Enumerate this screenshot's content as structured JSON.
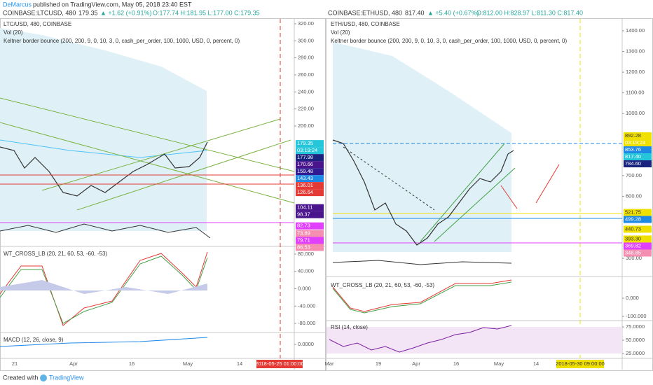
{
  "header": {
    "author": "DeMarcus",
    "published": "published on TradingView.com, May 05, 2018 23:40 EST"
  },
  "left": {
    "symbol": "COINBASE:LTCUSD, 480",
    "last": "179.35",
    "change": "▲ +1.62 (+0.91%)",
    "ohlc": "O:177.74 H:181.95 L:177.00 C:179.35",
    "pane_title": "LTC/USD, 480, COINBASE",
    "volume": "Vol (20)",
    "strategy": "Keltner border bounce (200, 200, 9, 0, 10, 3, 0, cash_per_order, 100, 1000, USD, 0, percent, 0)",
    "price_ticks": [
      {
        "value": 320,
        "label": "320.00"
      },
      {
        "value": 300,
        "label": "300.00"
      },
      {
        "value": 280,
        "label": "280.00"
      },
      {
        "value": 260,
        "label": "260.00"
      },
      {
        "value": 240,
        "label": "240.00"
      },
      {
        "value": 220,
        "label": "220.00"
      },
      {
        "value": 200,
        "label": "200.00"
      }
    ],
    "price_tags": [
      179.35,
      177.98,
      170.66,
      159.48,
      143.43,
      136.01,
      126.64,
      104.11,
      98.37,
      82.73,
      73.89,
      79.71,
      86.53
    ],
    "price_tag_colors": [
      "#26c6da",
      "#1a237e",
      "#4a148c",
      "#311b92",
      "#1e88e5",
      "#e53935",
      "#e53935",
      "#4a148c",
      "#4a148c",
      "#e040fb",
      "#f48fb1",
      "#e040fb",
      "#f48fb1"
    ],
    "countdown": "03:19:24",
    "wt_title": "WT_CROSS_LB (20, 21, 60, 53, -60, -53)",
    "wt_ticks": [
      {
        "value": 80,
        "label": "80.000"
      },
      {
        "value": 40,
        "label": "40.000"
      },
      {
        "value": 0,
        "label": "0.000"
      },
      {
        "value": -40,
        "label": "-40.000"
      },
      {
        "value": -80,
        "label": "-80.000"
      }
    ],
    "macd_title": "MACD (12, 26, close, 9)",
    "macd_ticks": [
      {
        "value": 0,
        "label": "0.0000"
      }
    ],
    "dates": [
      "21",
      "Apr",
      "16",
      "May",
      "14"
    ],
    "cursor_date": "2018-05-25 01:00:00"
  },
  "right": {
    "symbol": "COINBASE:ETHUSD, 480",
    "last": "817.40",
    "change": "▲ +5.40 (+0.67%)",
    "ohlc": "O:812.00 H:828.97 L:811.30 C:817.40",
    "pane_title": "ETH/USD, 480, COINBASE",
    "volume": "Vol (20)",
    "strategy": "Keltner border bounce (200, 200, 9, 0, 10, 3, 0, cash_per_order, 100, 1000, USD, 0, percent, 0)",
    "price_ticks": [
      {
        "value": 1400,
        "label": "1400.00"
      },
      {
        "value": 1300,
        "label": "1300.00"
      },
      {
        "value": 1200,
        "label": "1200.00"
      },
      {
        "value": 1100,
        "label": "1100.00"
      },
      {
        "value": 1000,
        "label": "1000.00"
      },
      {
        "value": 700,
        "label": "700.00"
      },
      {
        "value": 600,
        "label": "600.00"
      },
      {
        "value": 300,
        "label": "300.00"
      }
    ],
    "price_tags": [
      892.28,
      853.76,
      817.4,
      784.6,
      521.75,
      499.28,
      440.73,
      393.3,
      369.82,
      348.85
    ],
    "price_tag_labels": [
      "892.28",
      "853.76",
      "817.40",
      "784.60",
      "521.75",
      "499.28",
      "440.73",
      "393.30",
      "369.82",
      "348.85"
    ],
    "price_tag_colors": [
      "#f0e000",
      "#1e88e5",
      "#26c6da",
      "#1a237e",
      "#f0e000",
      "#1e88e5",
      "#f0e000",
      "#f0e000",
      "#e040fb",
      "#f48fb1"
    ],
    "countdown": "03:19:24",
    "wt_title": "WT_CROSS_LB (20, 21, 60, 53, -60, -53)",
    "wt_ticks": [
      {
        "value": 0,
        "label": "0.000"
      },
      {
        "value": -100,
        "label": "-100.000"
      }
    ],
    "rsi_title": "RSI (14, close)",
    "rsi_ticks": [
      {
        "value": 75,
        "label": "75.0000"
      },
      {
        "value": 50,
        "label": "50.0000"
      },
      {
        "value": 25,
        "label": "25.0000"
      }
    ],
    "dates": [
      "Mar",
      "19",
      "Apr",
      "16",
      "May",
      "14"
    ],
    "cursor_date": "2018-05-30 09:00:00"
  },
  "footer": {
    "created": "Created with",
    "brand": "TradingView"
  }
}
